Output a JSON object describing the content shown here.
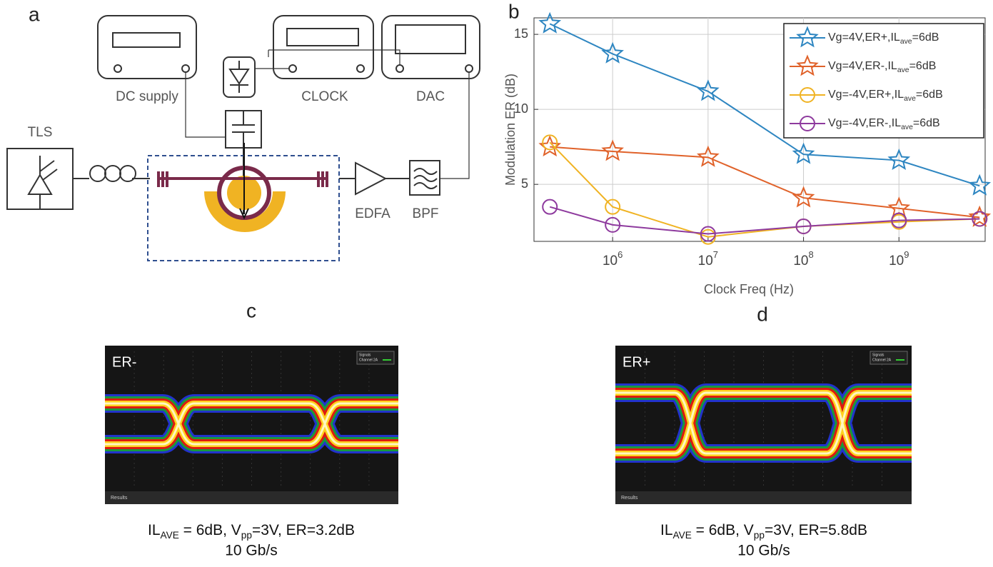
{
  "panels": {
    "a": "a",
    "b": "b",
    "c": "c",
    "d": "d"
  },
  "diagram": {
    "dc_supply": "DC supply",
    "clock": "CLOCK",
    "dac": "DAC",
    "tls": "TLS",
    "edfa": "EDFA",
    "bpf": "BPF"
  },
  "chart_data": {
    "type": "line",
    "xlabel": "Clock Freq (Hz)",
    "ylabel": "Modulation ER (dB)",
    "x": [
      220000,
      1000000,
      10000000,
      100000000,
      1000000000,
      7000000000
    ],
    "xscale": "log",
    "xlim": [
      150000,
      8000000000
    ],
    "xticks": [
      {
        "value": 1000000,
        "label": "10",
        "exp": "6"
      },
      {
        "value": 10000000,
        "label": "10",
        "exp": "7"
      },
      {
        "value": 100000000,
        "label": "10",
        "exp": "8"
      },
      {
        "value": 1000000000,
        "label": "10",
        "exp": "9"
      }
    ],
    "ylim": [
      1.2,
      16.1
    ],
    "yticks": [
      5,
      10,
      15
    ],
    "grid": true,
    "legend": "upper right",
    "series": [
      {
        "name": [
          "Vg=4V,ER+,IL",
          "ave",
          "=6dB"
        ],
        "color": "#2e86c1",
        "marker": "star",
        "values": [
          15.7,
          13.7,
          11.2,
          7.0,
          6.6,
          4.9
        ]
      },
      {
        "name": [
          "Vg=4V,ER-,IL",
          "ave",
          "=6dB"
        ],
        "color": "#e0622a",
        "marker": "star",
        "values": [
          7.5,
          7.2,
          6.8,
          4.1,
          3.4,
          2.8
        ]
      },
      {
        "name": [
          "Vg=-4V,ER+,IL",
          "ave",
          "=6dB"
        ],
        "color": "#f0b323",
        "marker": "circle",
        "values": [
          7.8,
          3.5,
          1.5,
          2.2,
          2.5,
          2.7
        ]
      },
      {
        "name": [
          "Vg=-4V,ER-,IL",
          "ave",
          "=6dB"
        ],
        "color": "#8e3a9e",
        "marker": "circle",
        "values": [
          3.5,
          2.3,
          1.7,
          2.2,
          2.6,
          2.7
        ]
      }
    ]
  },
  "eyes": [
    {
      "tag": "ER-",
      "toolbar": "Results",
      "legend": [
        "Signals",
        "Channel 2A"
      ],
      "caption": [
        "IL",
        "AVE",
        " = 6dB, V",
        "pp",
        "=3V,  ER=3.2dB"
      ],
      "rate": "10 Gb/s"
    },
    {
      "tag": "ER+",
      "toolbar": "Results",
      "legend": [
        "Signals",
        "Channel 2A"
      ],
      "caption": [
        "IL",
        "AVE",
        " = 6dB, V",
        "pp",
        "=3V,  ER=5.8dB"
      ],
      "rate": "10 Gb/s"
    }
  ]
}
